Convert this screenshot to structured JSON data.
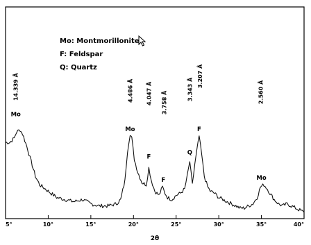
{
  "chart_data": {
    "type": "line",
    "xlabel": "2θ",
    "xlim": [
      5,
      40
    ],
    "x_ticks": [
      5,
      10,
      15,
      20,
      25,
      30,
      35,
      40
    ],
    "x_tick_labels": [
      "5°",
      "10°",
      "15°",
      "20°",
      "25°",
      "30°",
      "35°",
      "40°"
    ],
    "ylim": [
      0,
      100
    ],
    "legend": [
      {
        "key": "Mo",
        "text": "Mo: Montmorillonite"
      },
      {
        "key": "F",
        "text": "F: Feldspar"
      },
      {
        "key": "Q",
        "text": "Q: Quartz"
      }
    ],
    "legend_position": "top-center",
    "peak_labels": [
      {
        "x": 6.2,
        "y": 47,
        "text": "Mo"
      },
      {
        "x": 19.6,
        "y": 40,
        "text": "Mo"
      },
      {
        "x": 21.8,
        "y": 27,
        "text": "F"
      },
      {
        "x": 23.5,
        "y": 16,
        "text": "F"
      },
      {
        "x": 26.6,
        "y": 29,
        "text": "Q"
      },
      {
        "x": 27.7,
        "y": 40,
        "text": "F"
      },
      {
        "x": 35.0,
        "y": 17,
        "text": "Mo"
      }
    ],
    "d_spacings": [
      {
        "x": 6.2,
        "text": "14.339 Å"
      },
      {
        "x": 19.6,
        "text": "4.486 Å"
      },
      {
        "x": 21.8,
        "text": "4.047 Å"
      },
      {
        "x": 23.6,
        "text": "3.758 Å"
      },
      {
        "x": 26.6,
        "text": "3.343 Å"
      },
      {
        "x": 27.8,
        "text": "3.207 Å"
      },
      {
        "x": 34.9,
        "text": "2.560 Å"
      }
    ],
    "series": [
      {
        "x": [
          5.0,
          5.5,
          6.0,
          6.3,
          6.7,
          7.0,
          7.5,
          8.0,
          8.5,
          9.0,
          10.0,
          11.0,
          12.0,
          13.0,
          14.0,
          15.0,
          16.0,
          17.0,
          18.0,
          18.5,
          19.0,
          19.3,
          19.6,
          19.8,
          20.1,
          20.5,
          21.0,
          21.5,
          21.8,
          22.1,
          22.5,
          23.0,
          23.4,
          23.7,
          24.0,
          24.5,
          25.0,
          25.5,
          26.0,
          26.3,
          26.6,
          26.9,
          27.2,
          27.5,
          27.7,
          28.0,
          28.3,
          28.7,
          29.0,
          29.5,
          30.0,
          30.5,
          31.0,
          31.5,
          32.0,
          32.5,
          33.0,
          33.5,
          34.0,
          34.5,
          34.9,
          35.3,
          35.7,
          36.0,
          36.5,
          37.0,
          37.5,
          38.0,
          38.5,
          39.0,
          39.5,
          40.0
        ],
        "y": [
          36,
          36,
          38,
          41,
          42,
          40,
          34,
          27,
          20,
          16,
          13,
          10,
          9,
          8,
          9,
          7,
          6,
          6,
          7,
          9,
          18,
          32,
          40,
          38,
          28,
          22,
          17,
          16,
          24,
          18,
          13,
          11,
          15,
          12,
          10,
          9,
          11,
          12,
          14,
          20,
          27,
          16,
          26,
          34,
          39,
          30,
          20,
          15,
          13,
          12,
          10,
          9,
          8,
          7,
          6,
          5,
          5,
          6,
          7,
          10,
          15,
          16,
          14,
          12,
          9,
          7,
          6,
          7,
          6,
          5,
          4,
          3
        ]
      }
    ],
    "grid": false
  }
}
